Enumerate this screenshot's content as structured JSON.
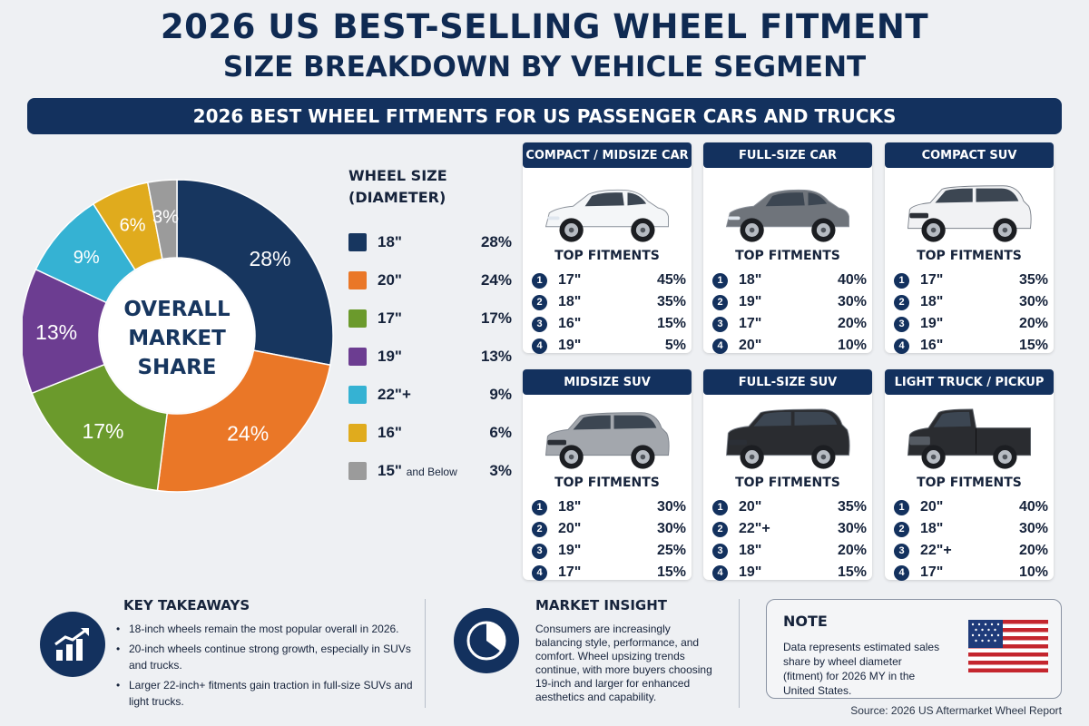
{
  "header": {
    "title": "2026 US BEST-SELLING WHEEL FITMENT",
    "subtitle": "SIZE BREAKDOWN BY VEHICLE SEGMENT",
    "banner": "2026 BEST WHEEL FITMENTS FOR US PASSENGER CARS AND TRUCKS"
  },
  "chart_data": {
    "type": "pie",
    "title": "",
    "center_label_lines": [
      "OVERALL",
      "MARKET",
      "SHARE"
    ],
    "legend_title_lines": [
      "WHEEL SIZE",
      "(DIAMETER)"
    ],
    "legend_placement": "right",
    "slices": [
      {
        "label": "18\"",
        "value": 28,
        "display": "28%",
        "color": "#17365f"
      },
      {
        "label": "20\"",
        "value": 24,
        "display": "24%",
        "color": "#ea7727"
      },
      {
        "label": "17\"",
        "value": 17,
        "display": "17%",
        "color": "#6b9a2c"
      },
      {
        "label": "19\"",
        "value": 13,
        "display": "13%",
        "color": "#6c3d91"
      },
      {
        "label": "22\"+",
        "value": 9,
        "display": "9%",
        "color": "#35b2d3"
      },
      {
        "label": "16\"",
        "value": 6,
        "display": "6%",
        "color": "#e0ab1d"
      },
      {
        "label": "15\"",
        "label_suffix": "and Below",
        "value": 3,
        "display": "3%",
        "color": "#9b9b9b"
      }
    ]
  },
  "segments": [
    {
      "name": "COMPACT / MIDSIZE CAR",
      "car_color": "#f4f6f8",
      "body": "sedan",
      "fitments_title": "TOP FITMENTS",
      "fitments": [
        {
          "rank": "1",
          "size": "17\"",
          "pct": "45%"
        },
        {
          "rank": "2",
          "size": "18\"",
          "pct": "35%"
        },
        {
          "rank": "3",
          "size": "16\"",
          "pct": "15%"
        },
        {
          "rank": "4",
          "size": "19\"",
          "pct": "5%"
        }
      ]
    },
    {
      "name": "FULL-SIZE CAR",
      "car_color": "#6f747b",
      "body": "sedan",
      "fitments_title": "TOP FITMENTS",
      "fitments": [
        {
          "rank": "1",
          "size": "18\"",
          "pct": "40%"
        },
        {
          "rank": "2",
          "size": "19\"",
          "pct": "30%"
        },
        {
          "rank": "3",
          "size": "17\"",
          "pct": "20%"
        },
        {
          "rank": "4",
          "size": "20\"",
          "pct": "10%"
        }
      ]
    },
    {
      "name": "COMPACT SUV",
      "car_color": "#f1f2f4",
      "body": "suv",
      "fitments_title": "TOP FITMENTS",
      "fitments": [
        {
          "rank": "1",
          "size": "17\"",
          "pct": "35%"
        },
        {
          "rank": "2",
          "size": "18\"",
          "pct": "30%"
        },
        {
          "rank": "3",
          "size": "19\"",
          "pct": "20%"
        },
        {
          "rank": "4",
          "size": "16\"",
          "pct": "15%"
        }
      ]
    },
    {
      "name": "MIDSIZE SUV",
      "car_color": "#a3a7ad",
      "body": "suv",
      "fitments_title": "TOP FITMENTS",
      "fitments": [
        {
          "rank": "1",
          "size": "18\"",
          "pct": "30%"
        },
        {
          "rank": "2",
          "size": "20\"",
          "pct": "30%"
        },
        {
          "rank": "3",
          "size": "19\"",
          "pct": "25%"
        },
        {
          "rank": "4",
          "size": "17\"",
          "pct": "15%"
        }
      ]
    },
    {
      "name": "FULL-SIZE SUV",
      "car_color": "#2a2c30",
      "body": "bigsuv",
      "fitments_title": "TOP FITMENTS",
      "fitments": [
        {
          "rank": "1",
          "size": "20\"",
          "pct": "35%"
        },
        {
          "rank": "2",
          "size": "22\"+",
          "pct": "30%"
        },
        {
          "rank": "3",
          "size": "18\"",
          "pct": "20%"
        },
        {
          "rank": "4",
          "size": "19\"",
          "pct": "15%"
        }
      ]
    },
    {
      "name": "LIGHT TRUCK / PICKUP",
      "car_color": "#2a2c30",
      "body": "truck",
      "fitments_title": "TOP FITMENTS",
      "fitments": [
        {
          "rank": "1",
          "size": "20\"",
          "pct": "40%"
        },
        {
          "rank": "2",
          "size": "18\"",
          "pct": "30%"
        },
        {
          "rank": "3",
          "size": "22\"+",
          "pct": "20%"
        },
        {
          "rank": "4",
          "size": "17\"",
          "pct": "10%"
        }
      ]
    }
  ],
  "key_takeaways": {
    "title": "KEY TAKEAWAYS",
    "icon": "bar-chart-growth-icon",
    "items": [
      "18-inch wheels remain the most popular overall in 2026.",
      "20-inch wheels continue strong growth, especially in SUVs and trucks.",
      "Larger 22-inch+ fitments gain traction in full-size SUVs and light trucks."
    ]
  },
  "market_insight": {
    "title": "MARKET INSIGHT",
    "icon": "pie-slice-icon",
    "text": "Consumers are increasingly balancing style, performance, and comfort. Wheel upsizing trends continue, with more buyers choosing 19-inch and larger for enhanced aesthetics and capability."
  },
  "note": {
    "title": "NOTE",
    "text": "Data represents estimated sales share by wheel diameter (fitment) for 2026 MY in the United States.",
    "icon": "us-flag-icon"
  },
  "source": "Source: 2026 US Aftermarket Wheel Report"
}
